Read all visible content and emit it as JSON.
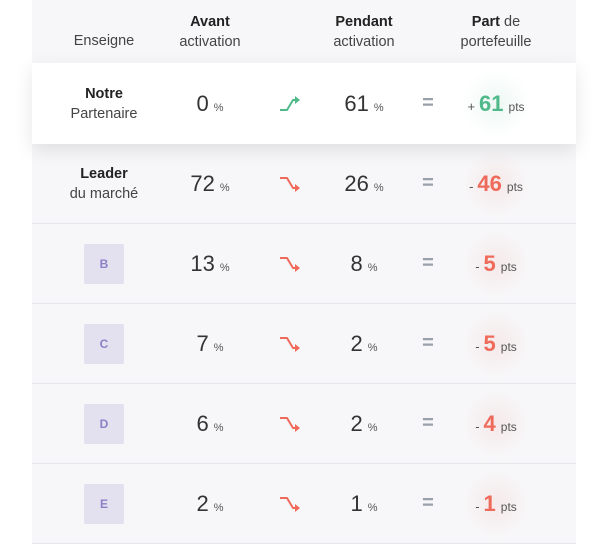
{
  "header": {
    "brand": "Enseigne",
    "before_bold": "Avant",
    "before_rest": "activation",
    "during_bold": "Pendant",
    "during_rest": "activation",
    "share_bold": "Part",
    "share_mid": " de",
    "share_rest": "portefeuille"
  },
  "colors": {
    "up": "#4fb98a",
    "down": "#ee6a5a",
    "badge_bg": "#e3e0f0",
    "badge_text": "#8f7fc5"
  },
  "rows": [
    {
      "brand_bold": "Notre",
      "brand_rest": "Partenaire",
      "before": "0",
      "before_unit": "%",
      "trend": "up-arrow-icon",
      "during": "61",
      "during_unit": "%",
      "eq": "=",
      "share_sign": "+",
      "share_value": "61",
      "share_unit": "pts"
    },
    {
      "brand_bold": "Leader",
      "brand_rest": "du marché",
      "before": "72",
      "before_unit": "%",
      "trend": "down-arrow-icon",
      "during": "26",
      "during_unit": "%",
      "eq": "=",
      "share_sign": "-",
      "share_value": "46",
      "share_unit": "pts"
    },
    {
      "badge": "B",
      "before": "13",
      "before_unit": "%",
      "trend": "down-arrow-icon",
      "during": "8",
      "during_unit": "%",
      "eq": "=",
      "share_sign": "-",
      "share_value": "5",
      "share_unit": "pts"
    },
    {
      "badge": "C",
      "before": "7",
      "before_unit": "%",
      "trend": "down-arrow-icon",
      "during": "2",
      "during_unit": "%",
      "eq": "=",
      "share_sign": "-",
      "share_value": "5",
      "share_unit": "pts"
    },
    {
      "badge": "D",
      "before": "6",
      "before_unit": "%",
      "trend": "down-arrow-icon",
      "during": "2",
      "during_unit": "%",
      "eq": "=",
      "share_sign": "-",
      "share_value": "4",
      "share_unit": "pts"
    },
    {
      "badge": "E",
      "before": "2",
      "before_unit": "%",
      "trend": "down-arrow-icon",
      "during": "1",
      "during_unit": "%",
      "eq": "=",
      "share_sign": "-",
      "share_value": "1",
      "share_unit": "pts"
    }
  ]
}
